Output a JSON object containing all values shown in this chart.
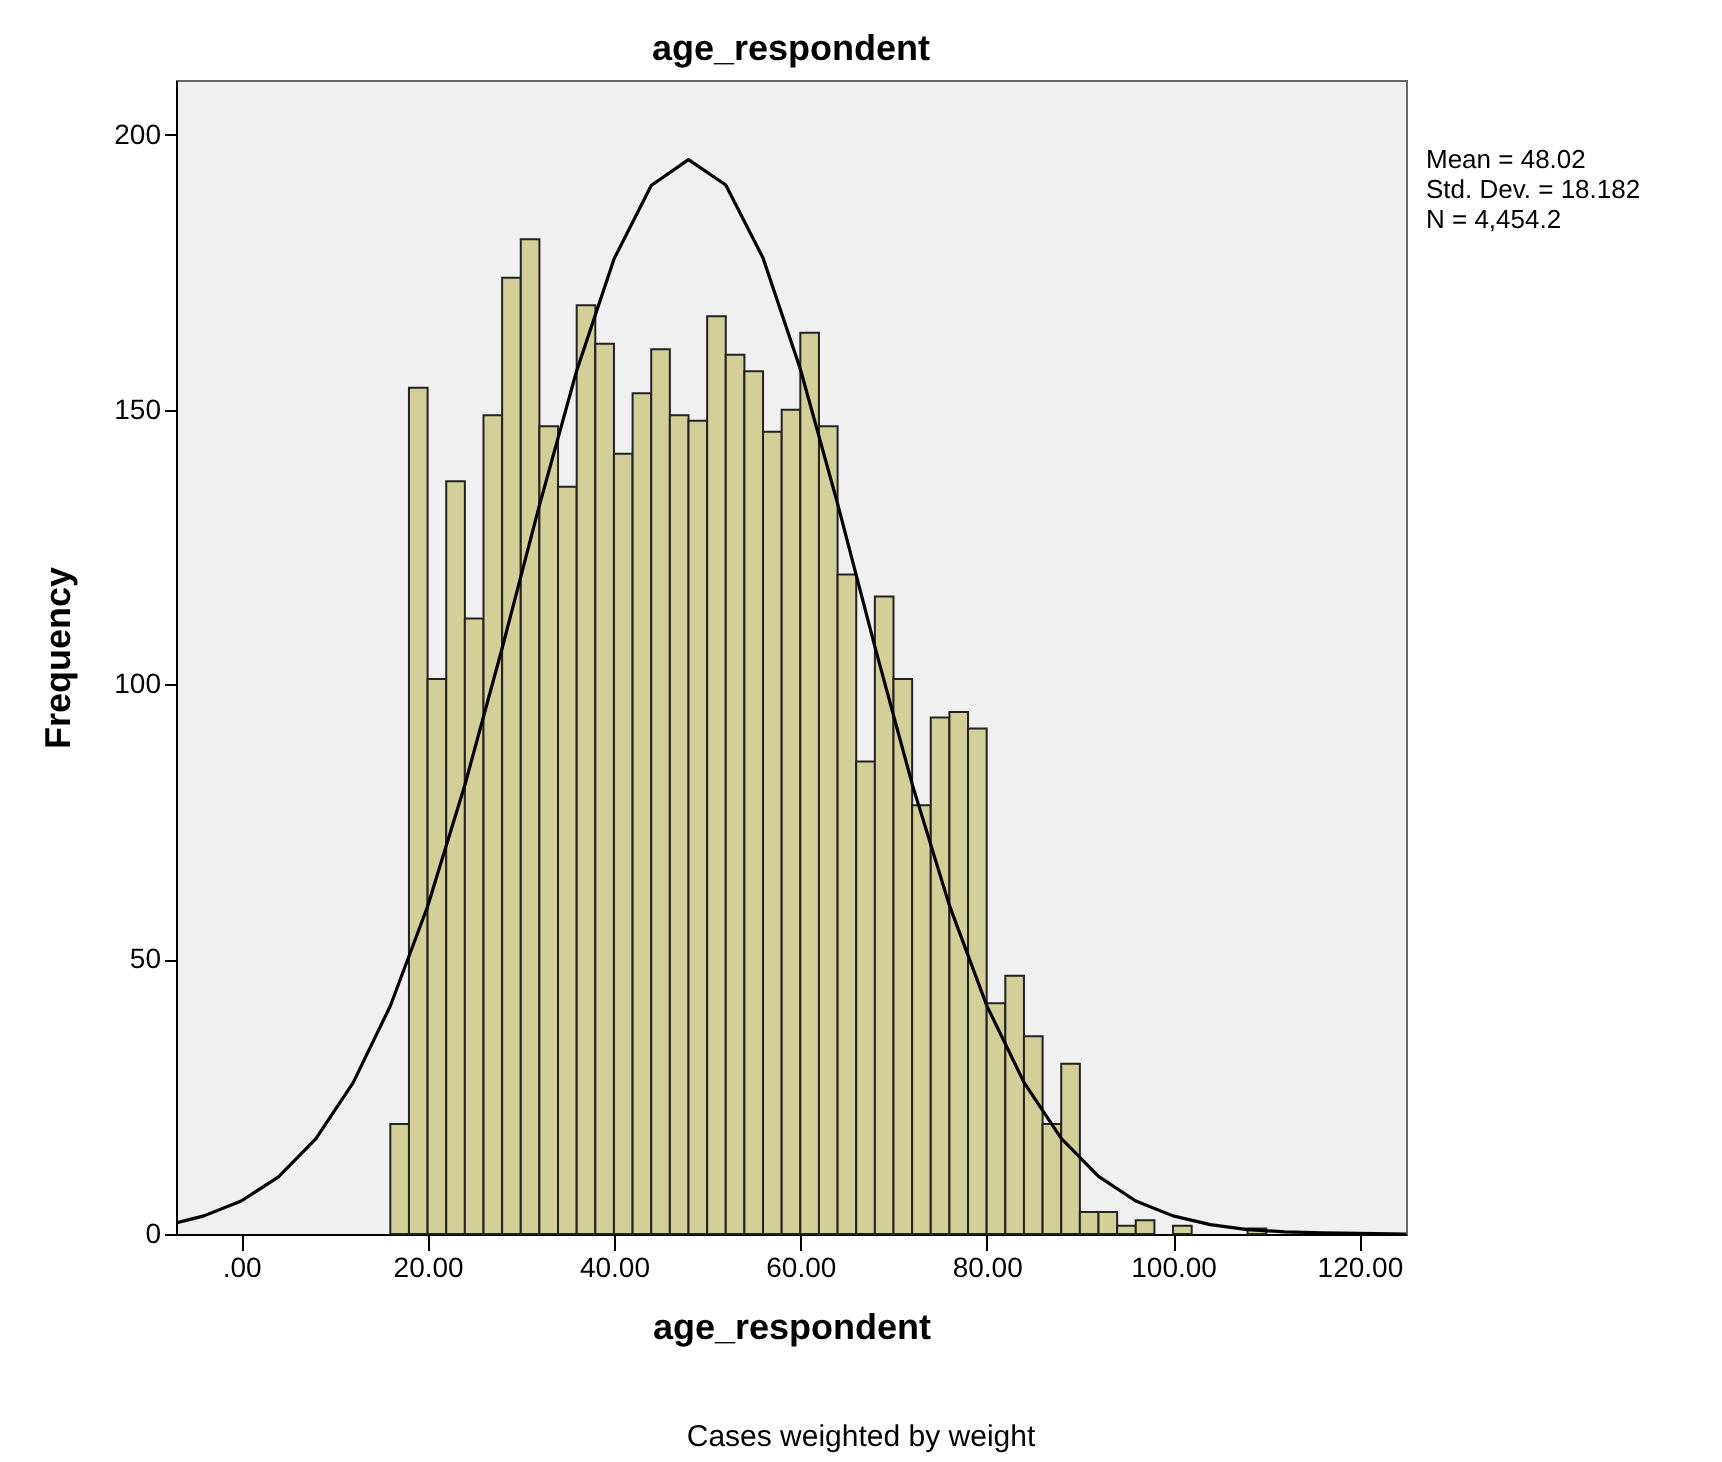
{
  "chart_data": {
    "type": "histogram",
    "title": "age_respondent",
    "xlabel": "age_respondent",
    "ylabel": "Frequency",
    "annotations": [
      "Mean = 48.02",
      "Std. Dev. = 18.182",
      "N = 4,454.2",
      "Cases weighted by weight"
    ],
    "bins": [
      16,
      18,
      20,
      22,
      24,
      26,
      28,
      30,
      32,
      34,
      36,
      38,
      40,
      42,
      44,
      46,
      48,
      50,
      52,
      54,
      56,
      58,
      60,
      62,
      64,
      66,
      68,
      70,
      72,
      74,
      76,
      78,
      80,
      82,
      84,
      86,
      88,
      90,
      92,
      94,
      96,
      98,
      100,
      102,
      104,
      106,
      108,
      110
    ],
    "series": [
      {
        "type": "histogram",
        "color": "#d4cf98",
        "values": [
          20,
          154,
          101,
          137,
          112,
          149,
          174,
          181,
          147,
          136,
          169,
          162,
          142,
          153,
          161,
          149,
          148,
          167,
          160,
          157,
          146,
          150,
          164,
          147,
          120,
          86,
          116,
          101,
          78,
          94,
          95,
          92,
          42,
          47,
          36,
          20,
          31,
          4,
          4,
          1.5,
          2.5,
          0,
          1.5,
          0,
          0,
          0,
          1
        ]
      },
      {
        "type": "line",
        "color": "#000000",
        "x": [
          -7,
          -4,
          0,
          4,
          8,
          12,
          16,
          20,
          24,
          28,
          32,
          36,
          40,
          44,
          48,
          52,
          56,
          60,
          64,
          68,
          72,
          76,
          80,
          84,
          88,
          92,
          96,
          100,
          104,
          108,
          112,
          116,
          120,
          125
        ],
        "values": [
          2.0,
          3.3,
          6.0,
          10.4,
          17.3,
          27.5,
          41.5,
          59.6,
          81.7,
          106.6,
          132.6,
          157.1,
          177.4,
          190.8,
          195.5,
          190.9,
          177.6,
          157.4,
          132.9,
          106.9,
          81.9,
          59.8,
          41.6,
          27.6,
          17.4,
          10.5,
          6.0,
          3.3,
          1.7,
          0.8,
          0.4,
          0.2,
          0.1,
          0.0
        ]
      }
    ],
    "xlim": [
      -7,
      125
    ],
    "ylim": [
      0,
      210
    ],
    "xticks": [
      {
        "value": 0,
        "label": ".00"
      },
      {
        "value": 20,
        "label": "20.00"
      },
      {
        "value": 40,
        "label": "40.00"
      },
      {
        "value": 60,
        "label": "60.00"
      },
      {
        "value": 80,
        "label": "80.00"
      },
      {
        "value": 100,
        "label": "100.00"
      },
      {
        "value": 120,
        "label": "120.00"
      }
    ],
    "yticks": [
      0,
      50,
      100,
      150,
      200
    ],
    "grid": false
  }
}
